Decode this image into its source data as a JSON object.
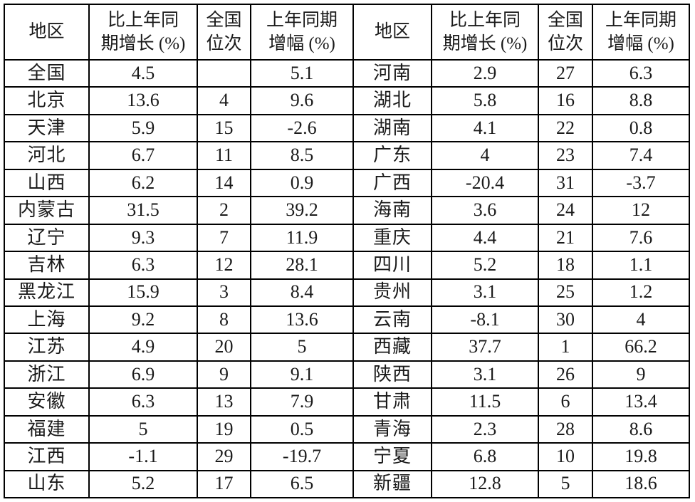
{
  "columns": [
    "地区",
    "比上年同\n期增长 (%)",
    "全国\n位次",
    "上年同期\n增幅 (%)"
  ],
  "left_rows": [
    {
      "region": "全国",
      "growth": "4.5",
      "rank": "",
      "prev": "5.1"
    },
    {
      "region": "北京",
      "growth": "13.6",
      "rank": "4",
      "prev": "9.6"
    },
    {
      "region": "天津",
      "growth": "5.9",
      "rank": "15",
      "prev": "-2.6"
    },
    {
      "region": "河北",
      "growth": "6.7",
      "rank": "11",
      "prev": "8.5"
    },
    {
      "region": "山西",
      "growth": "6.2",
      "rank": "14",
      "prev": "0.9"
    },
    {
      "region": "内蒙古",
      "growth": "31.5",
      "rank": "2",
      "prev": "39.2"
    },
    {
      "region": "辽宁",
      "growth": "9.3",
      "rank": "7",
      "prev": "11.9"
    },
    {
      "region": "吉林",
      "growth": "6.3",
      "rank": "12",
      "prev": "28.1"
    },
    {
      "region": "黑龙江",
      "growth": "15.9",
      "rank": "3",
      "prev": "8.4"
    },
    {
      "region": "上海",
      "growth": "9.2",
      "rank": "8",
      "prev": "13.6"
    },
    {
      "region": "江苏",
      "growth": "4.9",
      "rank": "20",
      "prev": "5"
    },
    {
      "region": "浙江",
      "growth": "6.9",
      "rank": "9",
      "prev": "9.1"
    },
    {
      "region": "安徽",
      "growth": "6.3",
      "rank": "13",
      "prev": "7.9"
    },
    {
      "region": "福建",
      "growth": "5",
      "rank": "19",
      "prev": "0.5"
    },
    {
      "region": "江西",
      "growth": "-1.1",
      "rank": "29",
      "prev": "-19.7"
    },
    {
      "region": "山东",
      "growth": "5.2",
      "rank": "17",
      "prev": "6.5"
    }
  ],
  "right_rows": [
    {
      "region": "河南",
      "growth": "2.9",
      "rank": "27",
      "prev": "6.3"
    },
    {
      "region": "湖北",
      "growth": "5.8",
      "rank": "16",
      "prev": "8.8"
    },
    {
      "region": "湖南",
      "growth": "4.1",
      "rank": "22",
      "prev": "0.8"
    },
    {
      "region": "广东",
      "growth": "4",
      "rank": "23",
      "prev": "7.4"
    },
    {
      "region": "广西",
      "growth": "-20.4",
      "rank": "31",
      "prev": "-3.7"
    },
    {
      "region": "海南",
      "growth": "3.6",
      "rank": "24",
      "prev": "12"
    },
    {
      "region": "重庆",
      "growth": "4.4",
      "rank": "21",
      "prev": "7.6"
    },
    {
      "region": "四川",
      "growth": "5.2",
      "rank": "18",
      "prev": "1.1"
    },
    {
      "region": "贵州",
      "growth": "3.1",
      "rank": "25",
      "prev": "1.2"
    },
    {
      "region": "云南",
      "growth": "-8.1",
      "rank": "30",
      "prev": "4"
    },
    {
      "region": "西藏",
      "growth": "37.7",
      "rank": "1",
      "prev": "66.2"
    },
    {
      "region": "陕西",
      "growth": "3.1",
      "rank": "26",
      "prev": "9"
    },
    {
      "region": "甘肃",
      "growth": "11.5",
      "rank": "6",
      "prev": "13.4"
    },
    {
      "region": "青海",
      "growth": "2.3",
      "rank": "28",
      "prev": "8.6"
    },
    {
      "region": "宁夏",
      "growth": "6.8",
      "rank": "10",
      "prev": "19.8"
    },
    {
      "region": "新疆",
      "growth": "12.8",
      "rank": "5",
      "prev": "18.6"
    }
  ]
}
